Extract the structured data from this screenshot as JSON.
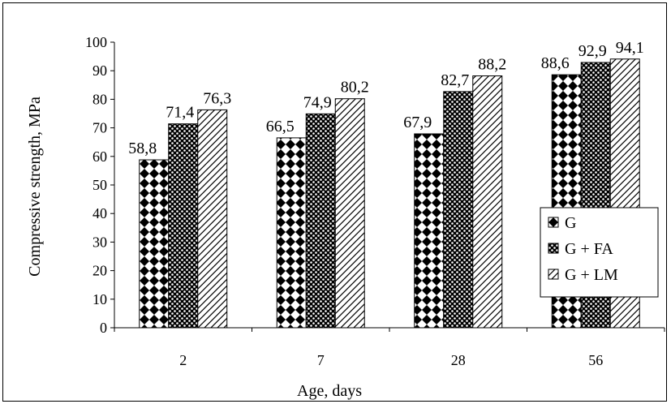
{
  "chart_data": {
    "type": "bar",
    "xlabel": "Age, days",
    "ylabel": "Compressive strength, MPa",
    "categories": [
      "2",
      "7",
      "28",
      "56"
    ],
    "series": [
      {
        "name": "G",
        "values": [
          58.8,
          66.5,
          67.9,
          88.6
        ],
        "labels": [
          "58,8",
          "66,5",
          "67,9",
          "88,6"
        ],
        "pattern": "diamond-checker"
      },
      {
        "name": "G + FA",
        "values": [
          71.4,
          74.9,
          82.7,
          92.9
        ],
        "labels": [
          "71,4",
          "74,9",
          "82,7",
          "92,9"
        ],
        "pattern": "dots"
      },
      {
        "name": "G + LM",
        "values": [
          76.3,
          80.2,
          88.2,
          94.1
        ],
        "labels": [
          "76,3",
          "80,2",
          "88,2",
          "94,1"
        ],
        "pattern": "diagonal-hatch"
      }
    ],
    "ylim": [
      0,
      100
    ],
    "yticks": [
      "0",
      "10",
      "20",
      "30",
      "40",
      "50",
      "60",
      "70",
      "80",
      "90",
      "100"
    ],
    "grid": false,
    "legend_position": "right",
    "colors": {
      "fill": "#000000",
      "background": "#ffffff",
      "stroke": "#000000"
    }
  }
}
